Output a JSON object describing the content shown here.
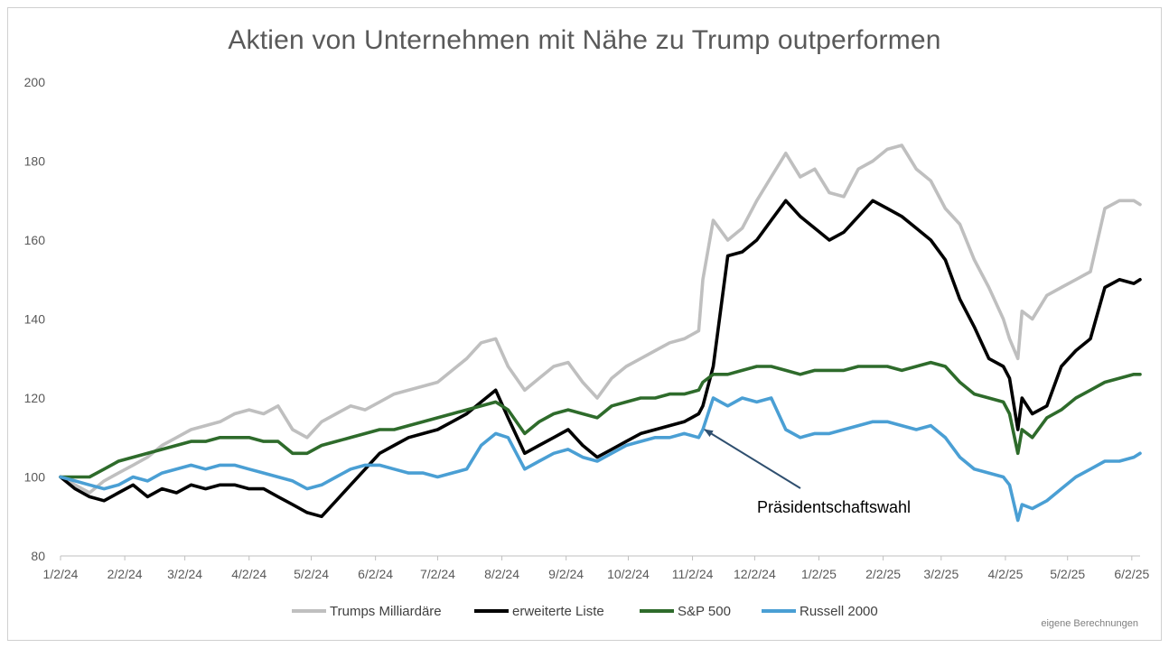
{
  "chart_data": {
    "type": "line",
    "title": "Aktien von Unternehmen mit Nähe zu Trump outperformen",
    "xlabel": "",
    "ylabel": "",
    "ylim": [
      80,
      200
    ],
    "yticks": [
      80,
      100,
      120,
      140,
      160,
      180,
      200
    ],
    "x_tick_labels": [
      "1/2/24",
      "2/2/24",
      "3/2/24",
      "4/2/24",
      "5/2/24",
      "6/2/24",
      "7/2/24",
      "8/2/24",
      "9/2/24",
      "10/2/24",
      "11/2/24",
      "12/2/24",
      "1/2/25",
      "2/2/25",
      "3/2/25",
      "4/2/25",
      "5/2/25",
      "6/2/25"
    ],
    "x_range": [
      "2024-01-02",
      "2025-06-06"
    ],
    "legend_position": "bottom",
    "grid": false,
    "x": [
      "2024-01-02",
      "2024-01-09",
      "2024-01-16",
      "2024-01-23",
      "2024-01-30",
      "2024-02-06",
      "2024-02-13",
      "2024-02-20",
      "2024-02-27",
      "2024-03-05",
      "2024-03-12",
      "2024-03-19",
      "2024-03-26",
      "2024-04-02",
      "2024-04-09",
      "2024-04-16",
      "2024-04-23",
      "2024-04-30",
      "2024-05-07",
      "2024-05-14",
      "2024-05-21",
      "2024-05-28",
      "2024-06-04",
      "2024-06-11",
      "2024-06-18",
      "2024-06-25",
      "2024-07-02",
      "2024-07-09",
      "2024-07-16",
      "2024-07-23",
      "2024-07-30",
      "2024-08-05",
      "2024-08-13",
      "2024-08-20",
      "2024-08-27",
      "2024-09-03",
      "2024-09-10",
      "2024-09-17",
      "2024-09-24",
      "2024-10-01",
      "2024-10-08",
      "2024-10-15",
      "2024-10-22",
      "2024-10-29",
      "2024-11-05",
      "2024-11-07",
      "2024-11-12",
      "2024-11-19",
      "2024-11-26",
      "2024-12-03",
      "2024-12-10",
      "2024-12-17",
      "2024-12-24",
      "2024-12-31",
      "2025-01-07",
      "2025-01-14",
      "2025-01-21",
      "2025-01-28",
      "2025-02-04",
      "2025-02-11",
      "2025-02-18",
      "2025-02-25",
      "2025-03-04",
      "2025-03-11",
      "2025-03-18",
      "2025-03-25",
      "2025-04-01",
      "2025-04-04",
      "2025-04-08",
      "2025-04-10",
      "2025-04-15",
      "2025-04-22",
      "2025-04-29",
      "2025-05-06",
      "2025-05-13",
      "2025-05-20",
      "2025-05-27",
      "2025-06-03",
      "2025-06-06"
    ],
    "series": [
      {
        "name": "Trumps Milliardäre",
        "color": "#bfbfbf",
        "values": [
          100,
          98,
          96,
          99,
          101,
          103,
          105,
          108,
          110,
          112,
          113,
          114,
          116,
          117,
          116,
          118,
          112,
          110,
          114,
          116,
          118,
          117,
          119,
          121,
          122,
          123,
          124,
          127,
          130,
          134,
          135,
          128,
          122,
          125,
          128,
          129,
          124,
          120,
          125,
          128,
          130,
          132,
          134,
          135,
          137,
          150,
          165,
          160,
          163,
          170,
          176,
          182,
          176,
          178,
          172,
          171,
          178,
          180,
          183,
          184,
          178,
          175,
          168,
          164,
          155,
          148,
          140,
          135,
          130,
          142,
          140,
          146,
          148,
          150,
          152,
          168,
          170,
          170,
          169
        ]
      },
      {
        "name": "erweiterte Liste",
        "color": "#000000",
        "values": [
          100,
          97,
          95,
          94,
          96,
          98,
          95,
          97,
          96,
          98,
          97,
          98,
          98,
          97,
          97,
          95,
          93,
          91,
          90,
          94,
          98,
          102,
          106,
          108,
          110,
          111,
          112,
          114,
          116,
          119,
          122,
          115,
          106,
          108,
          110,
          112,
          108,
          105,
          107,
          109,
          111,
          112,
          113,
          114,
          116,
          118,
          128,
          156,
          157,
          160,
          165,
          170,
          166,
          163,
          160,
          162,
          166,
          170,
          168,
          166,
          163,
          160,
          155,
          145,
          138,
          130,
          128,
          125,
          112,
          120,
          116,
          118,
          128,
          132,
          135,
          148,
          150,
          149,
          150
        ]
      },
      {
        "name": "S&P 500",
        "color": "#2e6b2b",
        "values": [
          100,
          100,
          100,
          102,
          104,
          105,
          106,
          107,
          108,
          109,
          109,
          110,
          110,
          110,
          109,
          109,
          106,
          106,
          108,
          109,
          110,
          111,
          112,
          112,
          113,
          114,
          115,
          116,
          117,
          118,
          119,
          117,
          111,
          114,
          116,
          117,
          116,
          115,
          118,
          119,
          120,
          120,
          121,
          121,
          122,
          124,
          126,
          126,
          127,
          128,
          128,
          127,
          126,
          127,
          127,
          127,
          128,
          128,
          128,
          127,
          128,
          129,
          128,
          124,
          121,
          120,
          119,
          116,
          106,
          112,
          110,
          115,
          117,
          120,
          122,
          124,
          125,
          126,
          126
        ]
      },
      {
        "name": "Russell 2000",
        "color": "#4a9fd4",
        "values": [
          100,
          99,
          98,
          97,
          98,
          100,
          99,
          101,
          102,
          103,
          102,
          103,
          103,
          102,
          101,
          100,
          99,
          97,
          98,
          100,
          102,
          103,
          103,
          102,
          101,
          101,
          100,
          101,
          102,
          108,
          111,
          110,
          102,
          104,
          106,
          107,
          105,
          104,
          106,
          108,
          109,
          110,
          110,
          111,
          110,
          112,
          120,
          118,
          120,
          119,
          120,
          112,
          110,
          111,
          111,
          112,
          113,
          114,
          114,
          113,
          112,
          113,
          110,
          105,
          102,
          101,
          100,
          98,
          89,
          93,
          92,
          94,
          97,
          100,
          102,
          104,
          104,
          105,
          106
        ]
      }
    ],
    "annotations": [
      {
        "text": "Präsidentschaftswahl",
        "x": "2024-11-07",
        "y": 110,
        "arrow": true
      }
    ],
    "source_note": "eigene Berechnungen"
  }
}
